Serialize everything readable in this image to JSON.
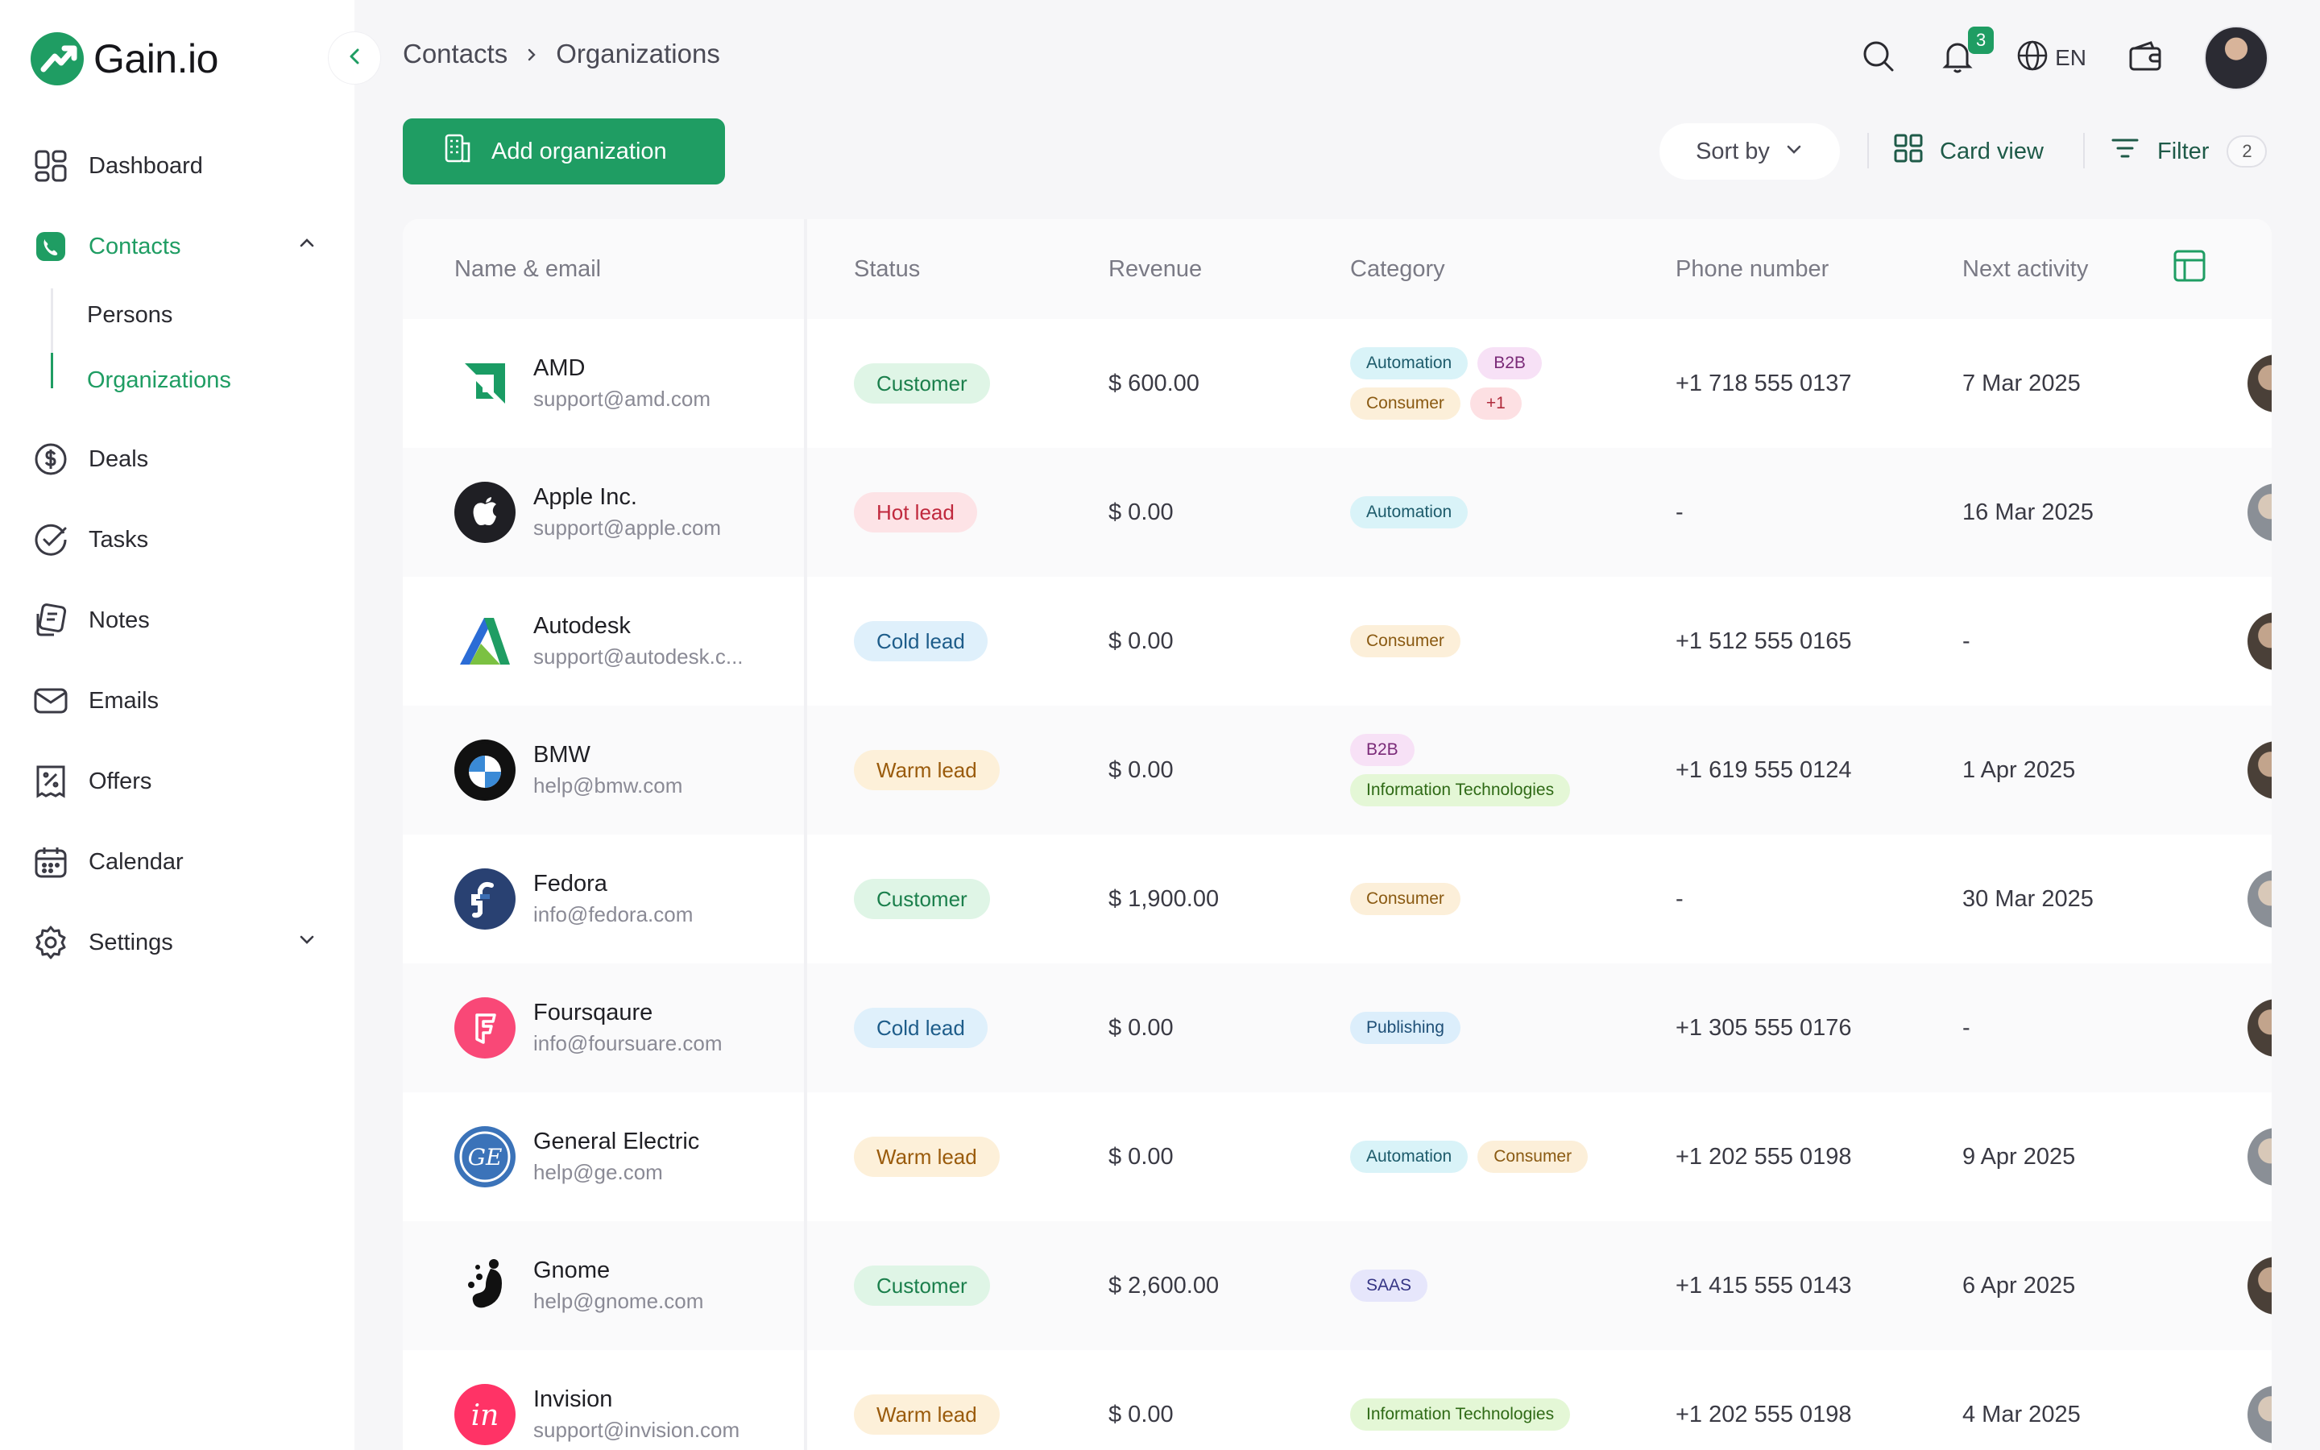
{
  "app": {
    "name": "Gain.io"
  },
  "sidebar": {
    "items": [
      {
        "label": "Dashboard",
        "icon": "dashboard-icon"
      },
      {
        "label": "Contacts",
        "icon": "contacts-icon",
        "active": true,
        "expanded": true,
        "children": [
          {
            "label": "Persons"
          },
          {
            "label": "Organizations",
            "active": true
          }
        ]
      },
      {
        "label": "Deals",
        "icon": "dollar-icon"
      },
      {
        "label": "Tasks",
        "icon": "check-circle-icon"
      },
      {
        "label": "Notes",
        "icon": "notes-icon"
      },
      {
        "label": "Emails",
        "icon": "mail-icon"
      },
      {
        "label": "Offers",
        "icon": "offers-icon"
      },
      {
        "label": "Calendar",
        "icon": "calendar-icon"
      },
      {
        "label": "Settings",
        "icon": "gear-icon",
        "expanded": false
      }
    ]
  },
  "header": {
    "breadcrumb": [
      "Contacts",
      "Organizations"
    ],
    "notifications_count": "3",
    "language": "EN"
  },
  "toolbar": {
    "add_label": "Add organization",
    "sort_label": "Sort by",
    "view_label": "Card view",
    "filter_label": "Filter",
    "filter_count": "2"
  },
  "table": {
    "columns": [
      "Name & email",
      "Status",
      "Revenue",
      "Category",
      "Phone number",
      "Next activity"
    ],
    "rows": [
      {
        "name": "AMD",
        "email": "support@amd.com",
        "status": "Customer",
        "status_kind": "customer",
        "revenue": "$ 600.00",
        "tags": [
          "Automation",
          "B2B",
          "Consumer",
          "+1"
        ],
        "phone": "+1 718 555 0137",
        "next": "7 Mar 2025"
      },
      {
        "name": "Apple Inc.",
        "email": "support@apple.com",
        "status": "Hot lead",
        "status_kind": "hot",
        "revenue": "$ 0.00",
        "tags": [
          "Automation"
        ],
        "phone": "-",
        "next": "16 Mar 2025"
      },
      {
        "name": "Autodesk",
        "email": "support@autodesk.c...",
        "status": "Cold lead",
        "status_kind": "cold",
        "revenue": "$ 0.00",
        "tags": [
          "Consumer"
        ],
        "phone": "+1 512 555 0165",
        "next": "-"
      },
      {
        "name": "BMW",
        "email": "help@bmw.com",
        "status": "Warm lead",
        "status_kind": "warm",
        "revenue": "$ 0.00",
        "tags": [
          "B2B",
          "Information Technologies"
        ],
        "phone": "+1 619 555 0124",
        "next": "1 Apr 2025"
      },
      {
        "name": "Fedora",
        "email": "info@fedora.com",
        "status": "Customer",
        "status_kind": "customer",
        "revenue": "$ 1,900.00",
        "tags": [
          "Consumer"
        ],
        "phone": "-",
        "next": "30 Mar 2025"
      },
      {
        "name": "Foursqaure",
        "email": "info@foursuare.com",
        "status": "Cold lead",
        "status_kind": "cold",
        "revenue": "$ 0.00",
        "tags": [
          "Publishing"
        ],
        "phone": "+1 305 555 0176",
        "next": "-"
      },
      {
        "name": "General Electric",
        "email": "help@ge.com",
        "status": "Warm lead",
        "status_kind": "warm",
        "revenue": "$ 0.00",
        "tags": [
          "Automation",
          "Consumer"
        ],
        "phone": "+1 202 555 0198",
        "next": "9 Apr 2025"
      },
      {
        "name": "Gnome",
        "email": "help@gnome.com",
        "status": "Customer",
        "status_kind": "customer",
        "revenue": "$ 2,600.00",
        "tags": [
          "SAAS"
        ],
        "phone": "+1 415 555 0143",
        "next": "6 Apr 2025"
      },
      {
        "name": "Invision",
        "email": "support@invision.com",
        "status": "Warm lead",
        "status_kind": "warm",
        "revenue": "$ 0.00",
        "tags": [
          "Information Technologies"
        ],
        "phone": "+1 202 555 0198",
        "next": "4 Mar 2025"
      }
    ]
  },
  "colors": {
    "accent": "#1f9d63",
    "background": "#f6f6f8"
  }
}
